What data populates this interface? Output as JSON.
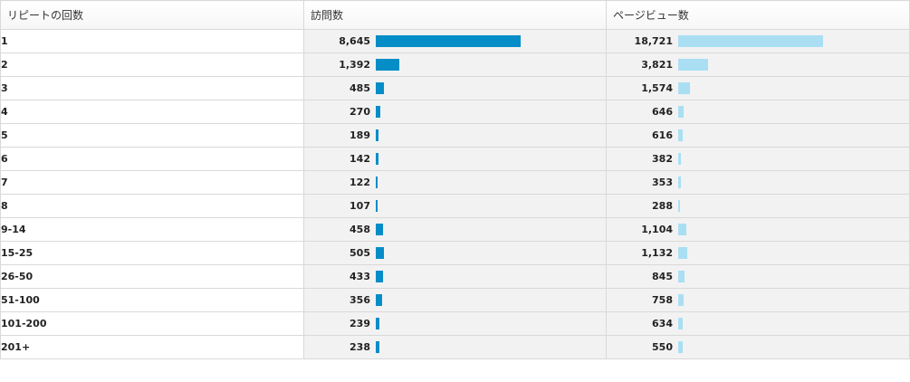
{
  "table": {
    "headers": {
      "dimension": "リピートの回数",
      "visits": "訪問数",
      "pageviews": "ページビュー数"
    },
    "colors": {
      "visits_bar": "#058dc7",
      "pageviews_bar": "#aadff3"
    },
    "max": {
      "visits": 8645,
      "pageviews": 18721
    },
    "rows": [
      {
        "label": "1",
        "visits": "8,645",
        "visits_value": 8645,
        "pageviews": "18,721",
        "pageviews_value": 18721
      },
      {
        "label": "2",
        "visits": "1,392",
        "visits_value": 1392,
        "pageviews": "3,821",
        "pageviews_value": 3821
      },
      {
        "label": "3",
        "visits": "485",
        "visits_value": 485,
        "pageviews": "1,574",
        "pageviews_value": 1574
      },
      {
        "label": "4",
        "visits": "270",
        "visits_value": 270,
        "pageviews": "646",
        "pageviews_value": 646
      },
      {
        "label": "5",
        "visits": "189",
        "visits_value": 189,
        "pageviews": "616",
        "pageviews_value": 616
      },
      {
        "label": "6",
        "visits": "142",
        "visits_value": 142,
        "pageviews": "382",
        "pageviews_value": 382
      },
      {
        "label": "7",
        "visits": "122",
        "visits_value": 122,
        "pageviews": "353",
        "pageviews_value": 353
      },
      {
        "label": "8",
        "visits": "107",
        "visits_value": 107,
        "pageviews": "288",
        "pageviews_value": 288
      },
      {
        "label": "9-14",
        "visits": "458",
        "visits_value": 458,
        "pageviews": "1,104",
        "pageviews_value": 1104
      },
      {
        "label": "15-25",
        "visits": "505",
        "visits_value": 505,
        "pageviews": "1,132",
        "pageviews_value": 1132
      },
      {
        "label": "26-50",
        "visits": "433",
        "visits_value": 433,
        "pageviews": "845",
        "pageviews_value": 845
      },
      {
        "label": "51-100",
        "visits": "356",
        "visits_value": 356,
        "pageviews": "758",
        "pageviews_value": 758
      },
      {
        "label": "101-200",
        "visits": "239",
        "visits_value": 239,
        "pageviews": "634",
        "pageviews_value": 634
      },
      {
        "label": "201+",
        "visits": "238",
        "visits_value": 238,
        "pageviews": "550",
        "pageviews_value": 550
      }
    ]
  }
}
